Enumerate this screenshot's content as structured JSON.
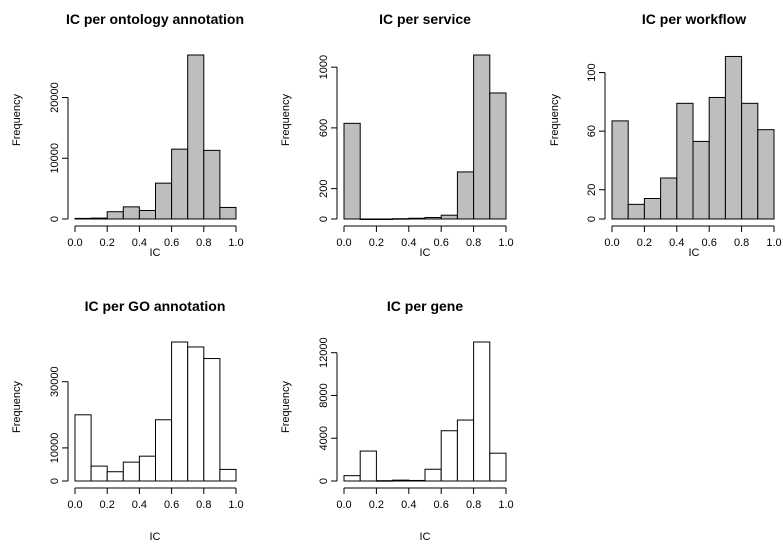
{
  "colors": {
    "gray_fill": "#bebebe",
    "white_fill": "#ffffff",
    "stroke": "#000000"
  },
  "chart_data": [
    {
      "type": "bar",
      "title": "IC per ontology annotation",
      "xlabel": "IC",
      "ylabel": "Frequency",
      "fill": "gray",
      "xlim": [
        0,
        1
      ],
      "ylim": [
        0,
        27000
      ],
      "xticks": [
        0,
        0.2,
        0.4,
        0.6,
        0.8,
        1
      ],
      "xtick_labels": [
        "0.0",
        "0.2",
        "0.4",
        "0.6",
        "0.8",
        "1.0"
      ],
      "yticks": [
        0,
        10000,
        20000
      ],
      "ytick_labels": [
        "0",
        "10000",
        "20000"
      ],
      "bin_width": 0.1,
      "bin_starts": [
        0,
        0.1,
        0.2,
        0.3,
        0.4,
        0.5,
        0.6,
        0.7,
        0.8,
        0.9
      ],
      "values": [
        100,
        150,
        1200,
        2000,
        1400,
        5900,
        11500,
        27000,
        11300,
        1900
      ]
    },
    {
      "type": "bar",
      "title": "IC per service",
      "xlabel": "IC",
      "ylabel": "Frequency",
      "fill": "gray",
      "xlim": [
        0,
        1
      ],
      "ylim": [
        0,
        1080
      ],
      "xticks": [
        0,
        0.2,
        0.4,
        0.6,
        0.8,
        1
      ],
      "xtick_labels": [
        "0.0",
        "0.2",
        "0.4",
        "0.6",
        "0.8",
        "1.0"
      ],
      "yticks": [
        0,
        200,
        600,
        1000
      ],
      "ytick_labels": [
        "0",
        "200",
        "600",
        "1000"
      ],
      "bin_width": 0.1,
      "bin_starts": [
        0,
        0.1,
        0.2,
        0.3,
        0.4,
        0.5,
        0.6,
        0.7,
        0.8,
        0.9
      ],
      "values": [
        630,
        0,
        0,
        2,
        5,
        10,
        25,
        310,
        1080,
        830
      ]
    },
    {
      "type": "bar",
      "title": "IC per workflow",
      "xlabel": "IC",
      "ylabel": "Frequency",
      "fill": "gray",
      "xlim": [
        0,
        1
      ],
      "ylim": [
        0,
        112
      ],
      "xticks": [
        0,
        0.2,
        0.4,
        0.6,
        0.8,
        1
      ],
      "xtick_labels": [
        "0.0",
        "0.2",
        "0.4",
        "0.6",
        "0.8",
        "1.0"
      ],
      "yticks": [
        0,
        20,
        60,
        100
      ],
      "ytick_labels": [
        "0",
        "20",
        "60",
        "100"
      ],
      "bin_width": 0.1,
      "bin_starts": [
        0,
        0.1,
        0.2,
        0.3,
        0.4,
        0.5,
        0.6,
        0.7,
        0.8,
        0.9
      ],
      "values": [
        67,
        10,
        14,
        28,
        79,
        53,
        83,
        111,
        79,
        61
      ]
    },
    {
      "type": "bar",
      "title": "IC per GO annotation",
      "xlabel": "IC",
      "ylabel": "Frequency",
      "fill": "white",
      "xlim": [
        0,
        1
      ],
      "ylim": [
        0,
        42000
      ],
      "xticks": [
        0,
        0.2,
        0.4,
        0.6,
        0.8,
        1
      ],
      "xtick_labels": [
        "0.0",
        "0.2",
        "0.4",
        "0.6",
        "0.8",
        "1.0"
      ],
      "yticks": [
        0,
        10000,
        30000
      ],
      "ytick_labels": [
        "0",
        "10000",
        "30000"
      ],
      "bin_width": 0.1,
      "bin_starts": [
        0,
        0.1,
        0.2,
        0.3,
        0.4,
        0.5,
        0.6,
        0.7,
        0.8,
        0.9
      ],
      "values": [
        20000,
        4500,
        2800,
        5700,
        7500,
        18500,
        42000,
        40500,
        37000,
        3500
      ]
    },
    {
      "type": "bar",
      "title": "IC per gene",
      "xlabel": "IC",
      "ylabel": "Frequency",
      "fill": "white",
      "xlim": [
        0,
        1
      ],
      "ylim": [
        0,
        13000
      ],
      "xticks": [
        0,
        0.2,
        0.4,
        0.6,
        0.8,
        1
      ],
      "xtick_labels": [
        "0.0",
        "0.2",
        "0.4",
        "0.6",
        "0.8",
        "1.0"
      ],
      "yticks": [
        0,
        4000,
        8000,
        12000
      ],
      "ytick_labels": [
        "0",
        "4000",
        "8000",
        "12000"
      ],
      "bin_width": 0.1,
      "bin_starts": [
        0,
        0.1,
        0.2,
        0.3,
        0.4,
        0.5,
        0.6,
        0.7,
        0.8,
        0.9
      ],
      "values": [
        500,
        2800,
        30,
        80,
        50,
        1100,
        4700,
        5700,
        13000,
        2600
      ]
    }
  ]
}
